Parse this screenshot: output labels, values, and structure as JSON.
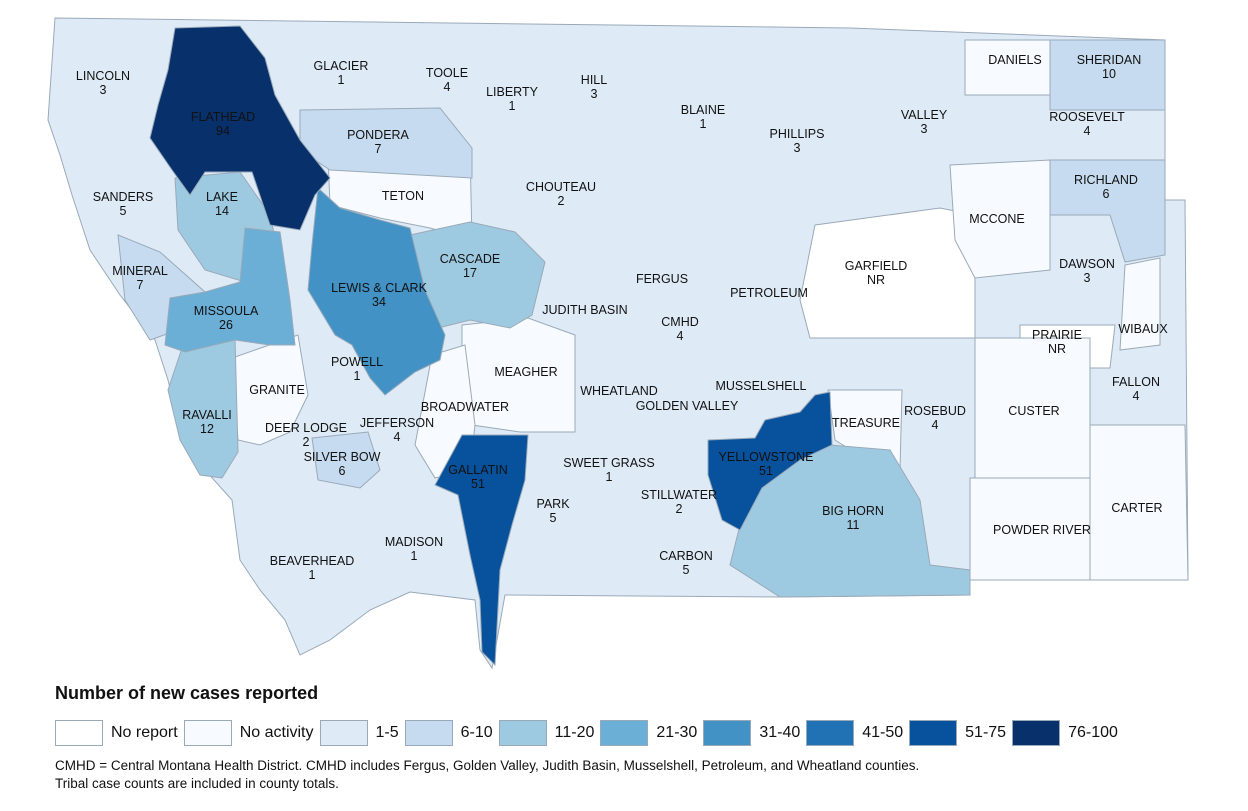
{
  "legend": {
    "title": "Number of new cases reported",
    "items": [
      {
        "label": "No report",
        "color": "#ffffff"
      },
      {
        "label": "No activity",
        "color": "#f7fbff"
      },
      {
        "label": "1-5",
        "color": "#deebf7"
      },
      {
        "label": "6-10",
        "color": "#c6dbef"
      },
      {
        "label": "11-20",
        "color": "#9ecae1"
      },
      {
        "label": "21-30",
        "color": "#6baed6"
      },
      {
        "label": "31-40",
        "color": "#4292c6"
      },
      {
        "label": "41-50",
        "color": "#2171b5"
      },
      {
        "label": "51-75",
        "color": "#08519c"
      },
      {
        "label": "76-100",
        "color": "#08306b"
      }
    ]
  },
  "footnote": {
    "line1": "CMHD = Central Montana Health District. CMHD includes Fergus, Golden Valley, Judith Basin, Musselshell, Petroleum, and Wheatland counties.",
    "line2": "Tribal case counts are included in county totals."
  },
  "counties": [
    {
      "name": "LINCOLN",
      "count": "3",
      "bin": "1-5"
    },
    {
      "name": "FLATHEAD",
      "count": "94",
      "bin": "76-100"
    },
    {
      "name": "GLACIER",
      "count": "1",
      "bin": "1-5"
    },
    {
      "name": "TOOLE",
      "count": "4",
      "bin": "1-5"
    },
    {
      "name": "LIBERTY",
      "count": "1",
      "bin": "1-5"
    },
    {
      "name": "HILL",
      "count": "3",
      "bin": "1-5"
    },
    {
      "name": "BLAINE",
      "count": "1",
      "bin": "1-5"
    },
    {
      "name": "PHILLIPS",
      "count": "3",
      "bin": "1-5"
    },
    {
      "name": "VALLEY",
      "count": "3",
      "bin": "1-5"
    },
    {
      "name": "DANIELS",
      "count": "",
      "bin": "No activity"
    },
    {
      "name": "SHERIDAN",
      "count": "10",
      "bin": "6-10"
    },
    {
      "name": "ROOSEVELT",
      "count": "4",
      "bin": "1-5"
    },
    {
      "name": "PONDERA",
      "count": "7",
      "bin": "6-10"
    },
    {
      "name": "SANDERS",
      "count": "5",
      "bin": "1-5"
    },
    {
      "name": "LAKE",
      "count": "14",
      "bin": "11-20"
    },
    {
      "name": "TETON",
      "count": "",
      "bin": "No activity"
    },
    {
      "name": "CHOUTEAU",
      "count": "2",
      "bin": "1-5"
    },
    {
      "name": "RICHLAND",
      "count": "6",
      "bin": "6-10"
    },
    {
      "name": "MCCONE",
      "count": "",
      "bin": "No activity"
    },
    {
      "name": "MINERAL",
      "count": "7",
      "bin": "6-10"
    },
    {
      "name": "MISSOULA",
      "count": "26",
      "bin": "21-30"
    },
    {
      "name": "LEWIS & CLARK",
      "count": "34",
      "bin": "31-40"
    },
    {
      "name": "CASCADE",
      "count": "17",
      "bin": "11-20"
    },
    {
      "name": "FERGUS",
      "count": "",
      "bin": "1-5"
    },
    {
      "name": "PETROLEUM",
      "count": "",
      "bin": "1-5"
    },
    {
      "name": "GARFIELD",
      "count": "NR",
      "bin": "No report"
    },
    {
      "name": "DAWSON",
      "count": "3",
      "bin": "1-5"
    },
    {
      "name": "JUDITH BASIN",
      "count": "",
      "bin": "1-5"
    },
    {
      "name": "CMHD",
      "count": "4",
      "bin": "1-5"
    },
    {
      "name": "PRAIRIE",
      "count": "NR",
      "bin": "No report"
    },
    {
      "name": "WIBAUX",
      "count": "",
      "bin": "No activity"
    },
    {
      "name": "POWELL",
      "count": "1",
      "bin": "1-5"
    },
    {
      "name": "GRANITE",
      "count": "",
      "bin": "No activity"
    },
    {
      "name": "MEAGHER",
      "count": "",
      "bin": "No activity"
    },
    {
      "name": "WHEATLAND",
      "count": "",
      "bin": "1-5"
    },
    {
      "name": "GOLDEN VALLEY",
      "count": "",
      "bin": "1-5"
    },
    {
      "name": "MUSSELSHELL",
      "count": "",
      "bin": "1-5"
    },
    {
      "name": "RAVALLI",
      "count": "12",
      "bin": "11-20"
    },
    {
      "name": "BROADWATER",
      "count": "",
      "bin": "No activity"
    },
    {
      "name": "DEER LODGE",
      "count": "2",
      "bin": "1-5"
    },
    {
      "name": "JEFFERSON",
      "count": "4",
      "bin": "1-5"
    },
    {
      "name": "SILVER BOW",
      "count": "6",
      "bin": "6-10"
    },
    {
      "name": "ROSEBUD",
      "count": "4",
      "bin": "1-5"
    },
    {
      "name": "TREASURE",
      "count": "",
      "bin": "No activity"
    },
    {
      "name": "CUSTER",
      "count": "",
      "bin": "No activity"
    },
    {
      "name": "FALLON",
      "count": "4",
      "bin": "1-5"
    },
    {
      "name": "GALLATIN",
      "count": "51",
      "bin": "51-75"
    },
    {
      "name": "SWEET GRASS",
      "count": "1",
      "bin": "1-5"
    },
    {
      "name": "YELLOWSTONE",
      "count": "51",
      "bin": "51-75"
    },
    {
      "name": "PARK",
      "count": "5",
      "bin": "1-5"
    },
    {
      "name": "STILLWATER",
      "count": "2",
      "bin": "1-5"
    },
    {
      "name": "BIG HORN",
      "count": "11",
      "bin": "11-20"
    },
    {
      "name": "CARTER",
      "count": "",
      "bin": "No activity"
    },
    {
      "name": "POWDER RIVER",
      "count": "",
      "bin": "No activity"
    },
    {
      "name": "BEAVERHEAD",
      "count": "1",
      "bin": "1-5"
    },
    {
      "name": "MADISON",
      "count": "1",
      "bin": "1-5"
    },
    {
      "name": "CARBON",
      "count": "5",
      "bin": "1-5"
    }
  ]
}
